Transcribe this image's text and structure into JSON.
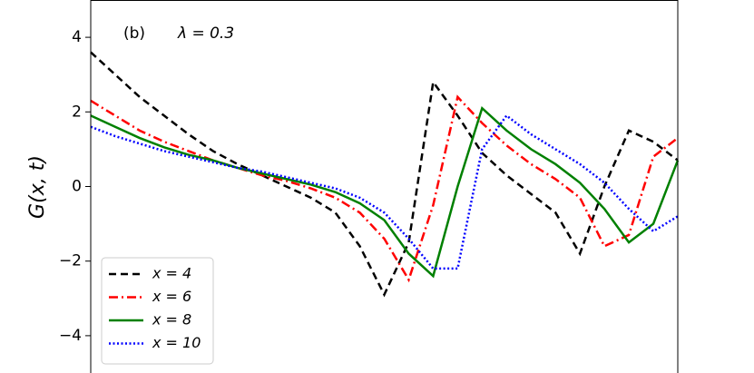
{
  "chart_data": {
    "type": "line",
    "annotations": [
      "(b)",
      "λ = 0.3"
    ],
    "ylabel": "G(x, t)",
    "categories": [
      null,
      null,
      null,
      null,
      null,
      null,
      null,
      null,
      null,
      null,
      null,
      null,
      null,
      null,
      null,
      null,
      null,
      null,
      null,
      null,
      null,
      null,
      null,
      null,
      null
    ],
    "series": [
      {
        "name": "x = 4",
        "color": "#000000",
        "linestyle": "dashed",
        "values": [
          3.6,
          3.0,
          2.4,
          1.9,
          1.4,
          0.95,
          0.6,
          0.3,
          0.0,
          -0.3,
          -0.7,
          -1.6,
          -2.9,
          -1.5,
          2.8,
          1.9,
          0.9,
          0.3,
          -0.2,
          -0.7,
          -1.8,
          0.0,
          1.5,
          1.2,
          0.7
        ]
      },
      {
        "name": "x = 6",
        "color": "#ff0000",
        "linestyle": "dashdot",
        "values": [
          2.3,
          1.9,
          1.5,
          1.2,
          0.95,
          0.7,
          0.5,
          0.3,
          0.15,
          -0.05,
          -0.3,
          -0.7,
          -1.4,
          -2.5,
          -0.5,
          2.4,
          1.7,
          1.1,
          0.6,
          0.2,
          -0.3,
          -1.6,
          -1.3,
          0.8,
          1.3
        ]
      },
      {
        "name": "x = 8",
        "color": "#008000",
        "linestyle": "solid",
        "values": [
          1.9,
          1.6,
          1.3,
          1.05,
          0.85,
          0.7,
          0.5,
          0.35,
          0.2,
          0.05,
          -0.15,
          -0.45,
          -0.9,
          -1.8,
          -2.4,
          0.0,
          2.1,
          1.5,
          1.0,
          0.6,
          0.1,
          -0.6,
          -1.5,
          -1.0,
          0.7
        ]
      },
      {
        "name": "x = 10",
        "color": "#0000ff",
        "linestyle": "dotted",
        "values": [
          1.6,
          1.35,
          1.15,
          0.95,
          0.8,
          0.65,
          0.5,
          0.4,
          0.25,
          0.1,
          -0.05,
          -0.3,
          -0.7,
          -1.4,
          -2.2,
          -2.2,
          1.0,
          1.9,
          1.4,
          1.0,
          0.6,
          0.1,
          -0.6,
          -1.2,
          -0.8
        ]
      }
    ],
    "ylim": [
      -5,
      5
    ],
    "yticks": [
      {
        "value": -4,
        "label": "−4"
      },
      {
        "value": -2,
        "label": "−2"
      },
      0,
      2,
      4
    ],
    "legend": "lower left"
  }
}
